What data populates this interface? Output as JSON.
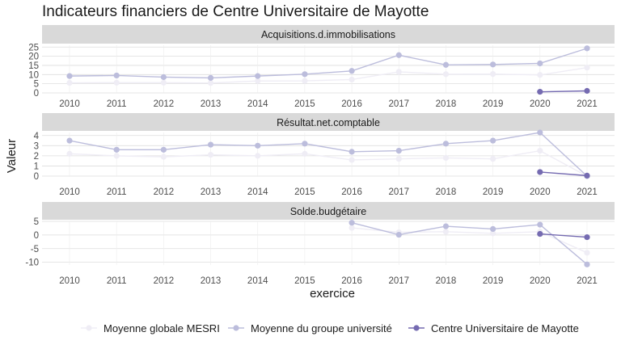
{
  "chart_data": {
    "type": "line",
    "title": "Indicateurs financiers de Centre Universitaire de Mayotte",
    "xlabel": "exercice",
    "ylabel": "Valeur",
    "x": [
      "2010",
      "2011",
      "2012",
      "2013",
      "2014",
      "2015",
      "2016",
      "2017",
      "2018",
      "2019",
      "2020",
      "2021"
    ],
    "legend_position": "bottom",
    "series_colors": [
      "#efedf5",
      "#bcbddc",
      "#756bb1"
    ],
    "legend": [
      "Moyenne globale MESRI",
      "Moyenne du groupe université",
      "Centre Universitaire de Mayotte"
    ],
    "panels": [
      {
        "strip": "Acquisitions.d.immobilisations",
        "ylim": [
          0,
          26
        ],
        "yticks": [
          0,
          5,
          10,
          15,
          20,
          25
        ],
        "series": [
          {
            "name": "Moyenne globale MESRI",
            "values": [
              5.5,
              5.6,
              5.6,
              5.4,
              6.5,
              6.6,
              7.3,
              11.5,
              10.2,
              10.3,
              9.8,
              13.8
            ]
          },
          {
            "name": "Moyenne du groupe université",
            "values": [
              9.2,
              9.5,
              8.6,
              8.2,
              9.2,
              10.2,
              12,
              20.6,
              15.3,
              15.5,
              16.1,
              24.3
            ]
          },
          {
            "name": "Centre Universitaire de Mayotte",
            "values": [
              null,
              null,
              null,
              null,
              null,
              null,
              null,
              null,
              null,
              null,
              0.6,
              1.1
            ]
          }
        ]
      },
      {
        "strip": "Résultat.net.comptable",
        "ylim": [
          0,
          4.3
        ],
        "yticks": [
          0,
          1,
          2,
          3,
          4
        ],
        "series": [
          {
            "name": "Moyenne globale MESRI",
            "values": [
              2.2,
              2.0,
              1.9,
              2.1,
              2.0,
              2.2,
              1.6,
              1.7,
              1.8,
              1.7,
              2.5,
              0.0
            ]
          },
          {
            "name": "Moyenne du groupe université",
            "values": [
              3.5,
              2.6,
              2.6,
              3.1,
              3.0,
              3.2,
              2.4,
              2.5,
              3.2,
              3.5,
              4.3,
              0.0
            ]
          },
          {
            "name": "Centre Universitaire de Mayotte",
            "values": [
              null,
              null,
              null,
              null,
              null,
              null,
              null,
              null,
              null,
              null,
              0.4,
              0.05
            ]
          }
        ]
      },
      {
        "strip": "Solde.budgétaire",
        "ylim": [
          -11,
          5
        ],
        "yticks": [
          -10,
          -5,
          0,
          5
        ],
        "series": [
          {
            "name": "Moyenne globale MESRI",
            "values": [
              null,
              null,
              null,
              null,
              null,
              null,
              2.6,
              1.0,
              1.2,
              0.6,
              1.2,
              -6.5
            ]
          },
          {
            "name": "Moyenne du groupe université",
            "values": [
              null,
              null,
              null,
              null,
              null,
              null,
              4.5,
              0.1,
              3.2,
              2.2,
              3.8,
              -10.8
            ]
          },
          {
            "name": "Centre Universitaire de Mayotte",
            "values": [
              null,
              null,
              null,
              null,
              null,
              null,
              null,
              null,
              null,
              null,
              0.4,
              -0.8
            ]
          }
        ]
      }
    ]
  }
}
